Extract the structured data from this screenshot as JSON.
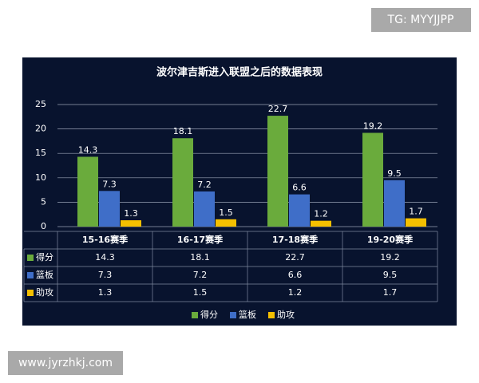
{
  "watermark_top": "TG: MYYJJPP",
  "watermark_bottom": "www.jyrzhkj.com",
  "chart_data": {
    "type": "bar",
    "title": "波尔津吉斯进入联盟之后的数据表现",
    "categories": [
      "15-16赛季",
      "16-17赛季",
      "17-18赛季",
      "19-20赛季"
    ],
    "series": [
      {
        "name": "得分",
        "color": "#6aab3c",
        "values": [
          14.3,
          18.1,
          22.7,
          19.2
        ]
      },
      {
        "name": "篮板",
        "color": "#3f6ec8",
        "values": [
          7.3,
          7.2,
          6.6,
          9.5
        ]
      },
      {
        "name": "助攻",
        "color": "#f5c000",
        "values": [
          1.3,
          1.5,
          1.2,
          1.7
        ]
      }
    ],
    "ylim": [
      0,
      25
    ],
    "yticks": [
      0,
      5,
      10,
      15,
      20,
      25
    ],
    "grid": true,
    "legend": "bottom",
    "data_table": true
  }
}
